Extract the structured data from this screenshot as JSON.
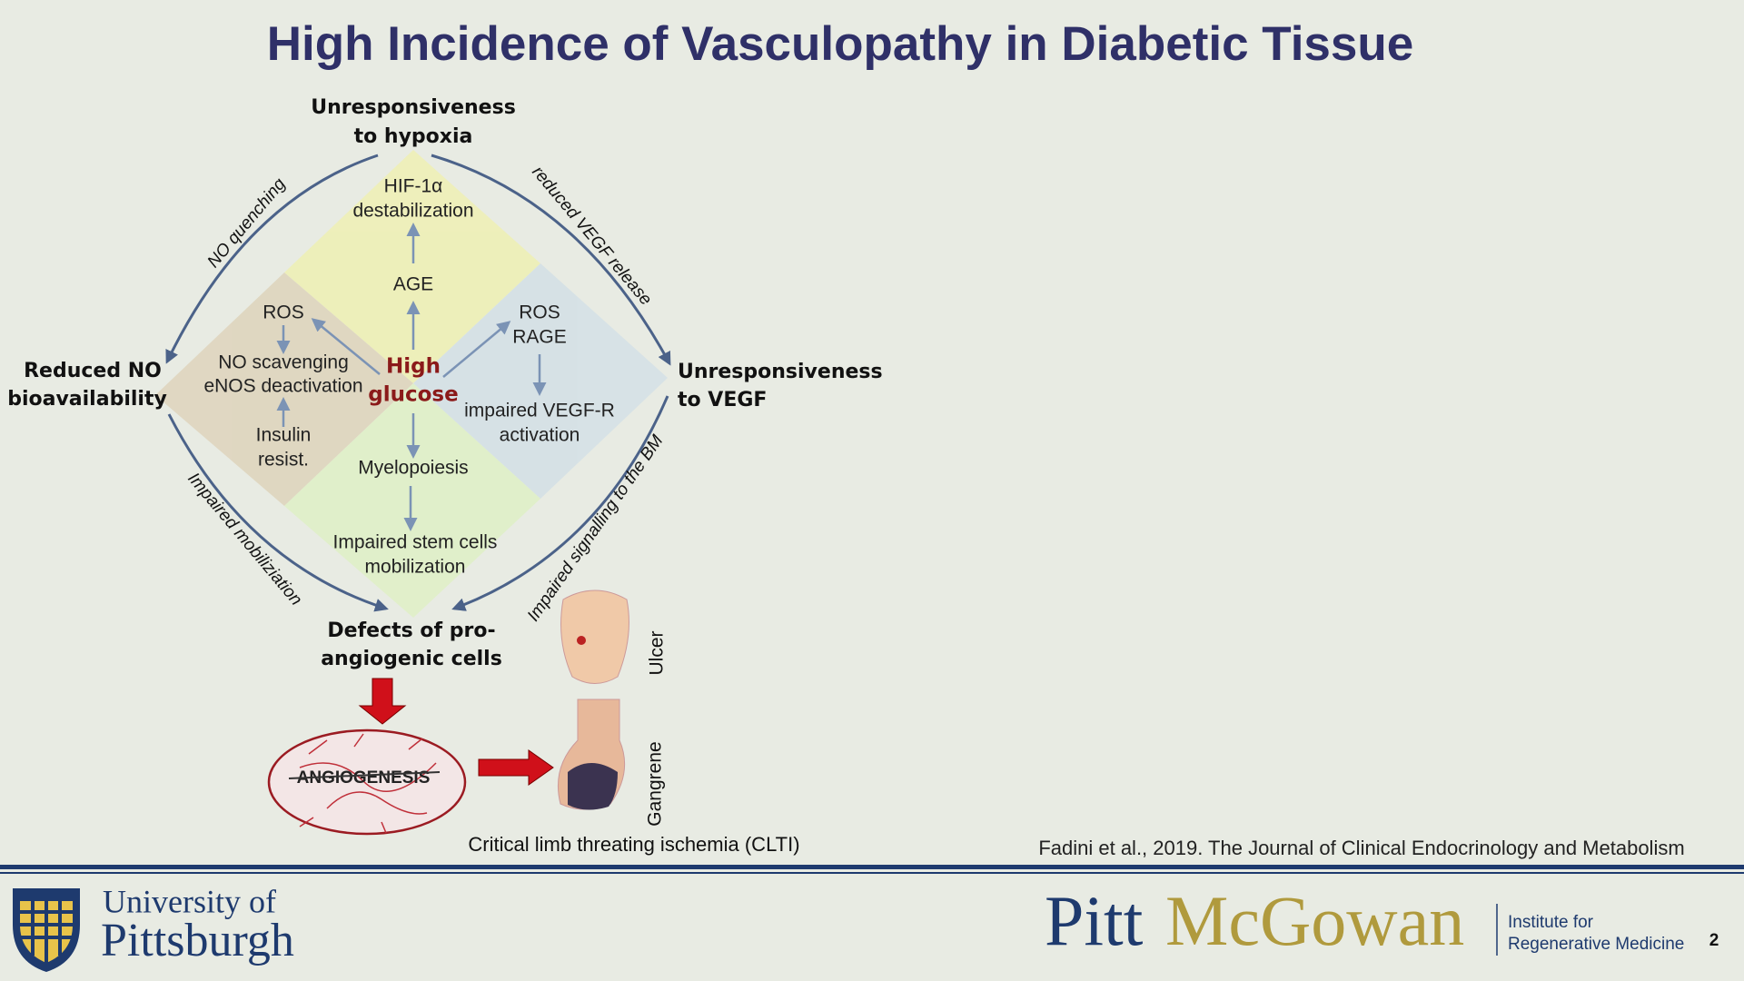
{
  "header": {
    "title": "High Incidence of Vasculopathy in Diabetic Tissue"
  },
  "diagram": {
    "corners": {
      "top": [
        "Unresponsiveness",
        "to hypoxia"
      ],
      "left": [
        "Reduced NO",
        "bioavailability"
      ],
      "right": [
        "Unresponsiveness",
        "to VEGF"
      ],
      "bottom": [
        "Defects of pro-",
        "angiogenic cells"
      ]
    },
    "arcs": {
      "top_left": "NO quenching",
      "top_right": "reduced VEGF release",
      "bottom_left": "Impaired mobiliziation",
      "bottom_right": "Impaired signalling to the BM"
    },
    "center": [
      "High",
      "glucose"
    ],
    "top": {
      "hif": [
        "HIF-1α",
        "destabilization"
      ],
      "age": "AGE"
    },
    "left": {
      "ros": "ROS",
      "no": [
        "NO scavenging",
        "eNOS deactivation"
      ],
      "insulin": [
        "Insulin",
        "resist."
      ]
    },
    "right": {
      "ros": [
        "ROS",
        "RAGE"
      ],
      "vegfr": [
        "impaired VEGF-R",
        "activation"
      ]
    },
    "bottom": {
      "myelo": "Myelopoiesis",
      "stem": [
        "Impaired stem cells",
        "mobilization"
      ]
    },
    "angiogenesis": "ANGIOGENESIS",
    "ulcer": "Ulcer",
    "gangrene": "Gangrene",
    "caption": "Critical limb threating ischemia (CLTI)"
  },
  "citation": "Fadini et al., 2019. The Journal of Clinical Endocrinology and Metabolism",
  "footer": {
    "university": [
      "University of",
      "Pittsburgh"
    ],
    "pitt": "Pitt",
    "mcgowan": "McGowan",
    "institute": [
      "Institute for",
      "Regenerative Medicine"
    ],
    "page": "2"
  }
}
